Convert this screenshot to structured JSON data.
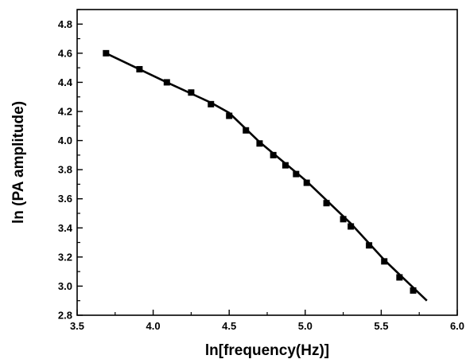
{
  "chart_data": {
    "type": "scatter",
    "title": "",
    "xlabel": "ln[frequency(Hz)]",
    "ylabel": "ln (PA amplitude)",
    "xlim": [
      3.5,
      6.0
    ],
    "ylim": [
      2.8,
      4.9
    ],
    "x_ticks": [
      "3.5",
      "4.0",
      "4.5",
      "5.0",
      "5.5",
      "6.0"
    ],
    "y_ticks": [
      "2.8",
      "3.0",
      "3.2",
      "3.4",
      "3.6",
      "3.8",
      "4.0",
      "4.2",
      "4.4",
      "4.6",
      "4.8"
    ],
    "grid": false,
    "series": [
      {
        "kind": "points",
        "marker": "square",
        "color": "#000000",
        "x": [
          3.69,
          3.91,
          4.09,
          4.25,
          4.38,
          4.5,
          4.61,
          4.7,
          4.79,
          4.87,
          4.94,
          5.01,
          5.14,
          5.25,
          5.3,
          5.42,
          5.52,
          5.62,
          5.71
        ],
        "y": [
          4.6,
          4.49,
          4.4,
          4.33,
          4.25,
          4.17,
          4.07,
          3.98,
          3.9,
          3.83,
          3.77,
          3.71,
          3.57,
          3.46,
          3.41,
          3.28,
          3.17,
          3.06,
          2.97
        ]
      },
      {
        "kind": "line",
        "color": "#000000",
        "x": [
          3.69,
          4.09,
          4.38,
          4.5,
          4.55,
          4.61,
          4.7,
          5.01,
          5.3,
          5.52,
          5.8
        ],
        "y": [
          4.6,
          4.4,
          4.26,
          4.19,
          4.14,
          4.08,
          3.99,
          3.72,
          3.43,
          3.18,
          2.9
        ]
      }
    ]
  }
}
